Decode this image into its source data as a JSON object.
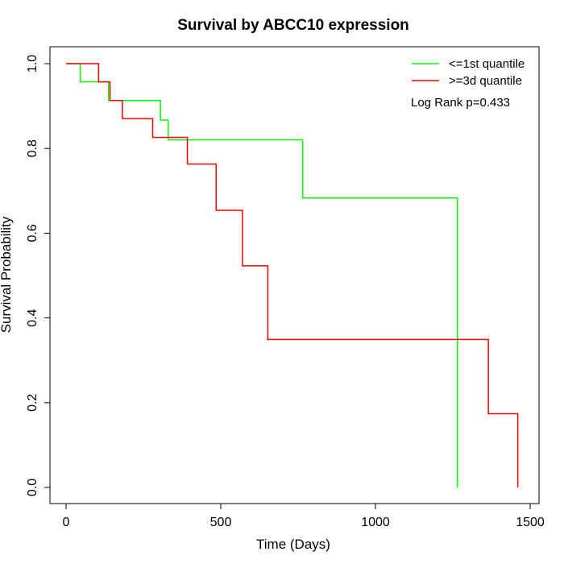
{
  "chart_data": {
    "type": "line",
    "title": "Survival by ABCC10 expression",
    "xlabel": "Time (Days)",
    "ylabel": "Survival Probability",
    "xlim": [
      0,
      1500
    ],
    "ylim": [
      0,
      1
    ],
    "x_ticks": [
      0,
      500,
      1000,
      1500
    ],
    "y_ticks": [
      0.0,
      0.2,
      0.4,
      0.6,
      0.8,
      1.0
    ],
    "x_tick_labels": [
      "0",
      "500",
      "1000",
      "1500"
    ],
    "y_tick_labels": [
      "0.0",
      "0.2",
      "0.4",
      "0.6",
      "0.8",
      "1.0"
    ],
    "step": true,
    "grid": false,
    "legend_position": "top-right",
    "series": [
      {
        "name": "<=1st quantile",
        "color": "#00ff00",
        "x": [
          0,
          46,
          137,
          305,
          330,
          765,
          1265,
          1265
        ],
        "y": [
          1.0,
          0.957,
          0.913,
          0.867,
          0.82,
          0.683,
          0.683,
          0.0
        ]
      },
      {
        "name": ">=3d quantile",
        "color": "#ff0000",
        "x": [
          0,
          105,
          142,
          182,
          280,
          392,
          485,
          570,
          652,
          1365,
          1460
        ],
        "y": [
          1.0,
          0.957,
          0.913,
          0.87,
          0.826,
          0.763,
          0.654,
          0.523,
          0.349,
          0.174,
          0.0
        ]
      }
    ],
    "annotation": "Log Rank p=0.433"
  }
}
